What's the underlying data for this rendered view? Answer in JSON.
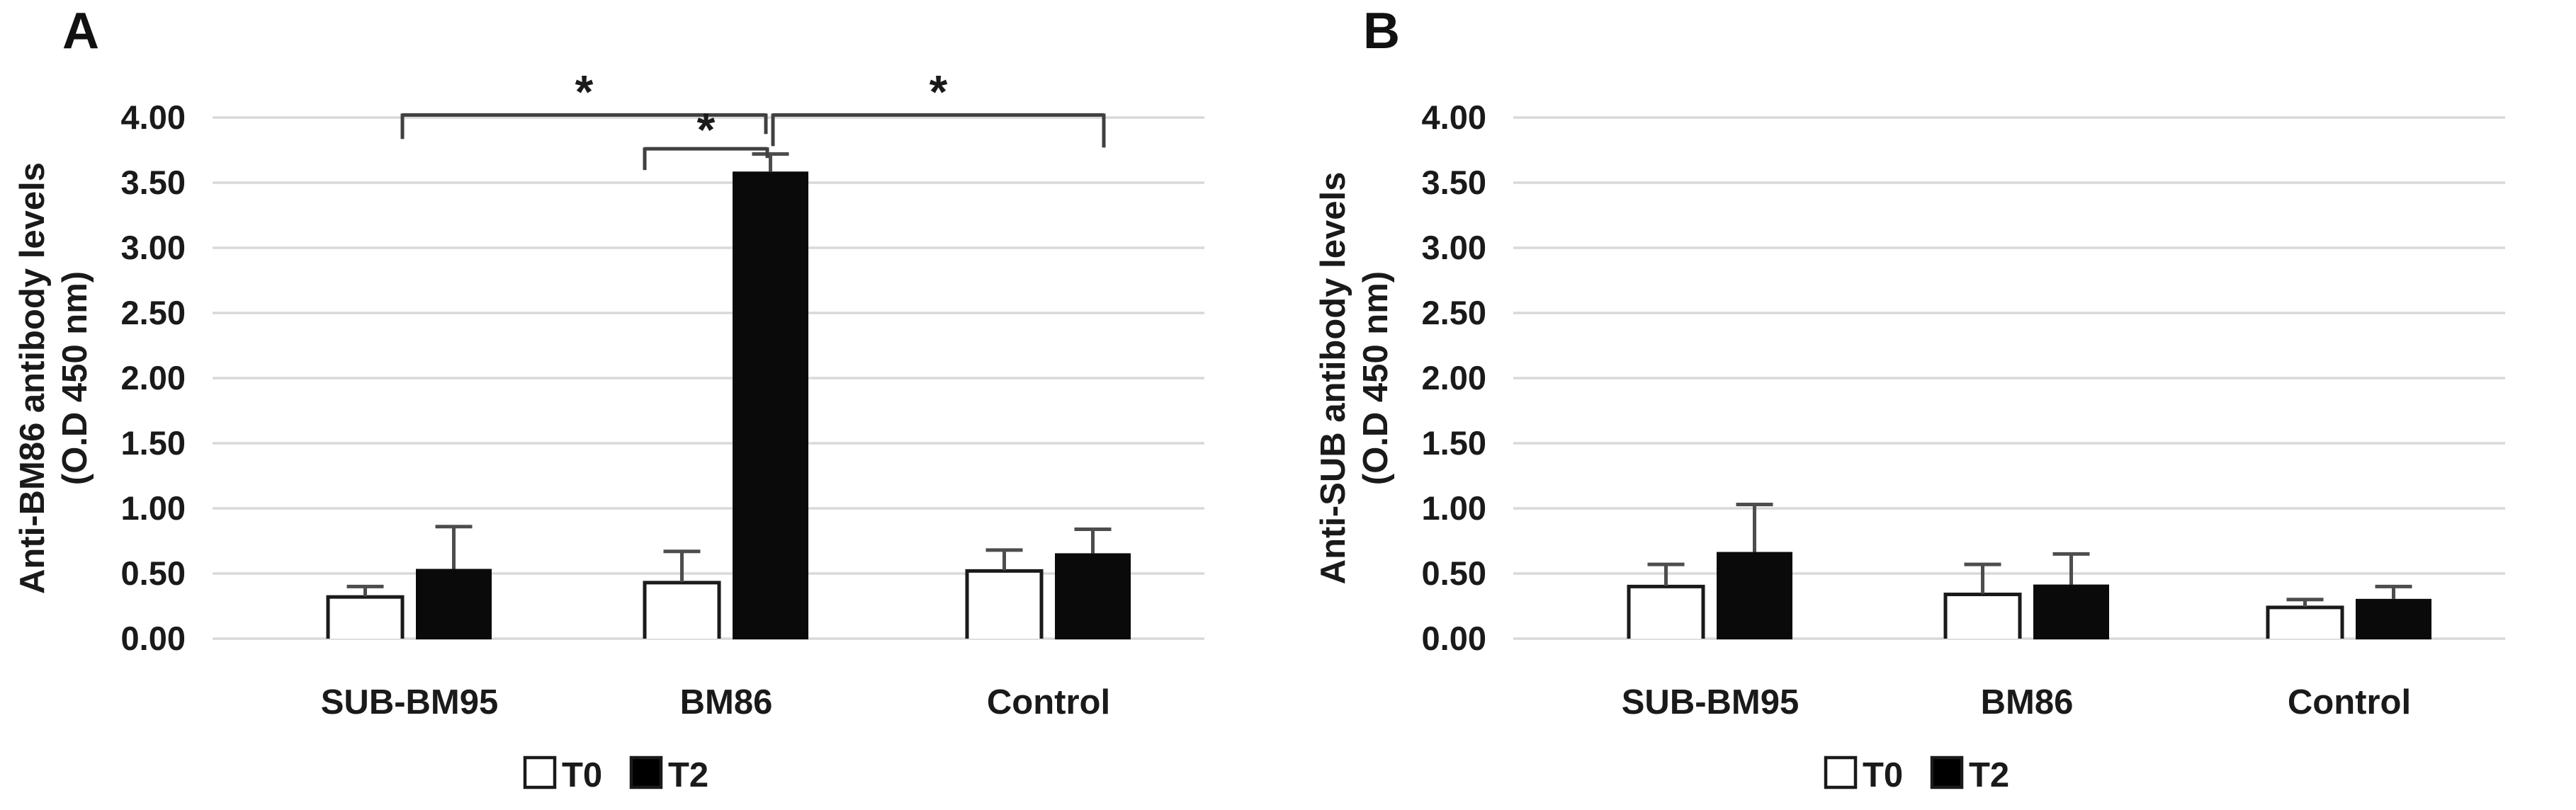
{
  "page": {
    "background": "#ffffff"
  },
  "colors": {
    "grid": "#d9d9d9",
    "text": "#1a1a1a",
    "bar_fill_t0": "#ffffff",
    "bar_fill_t2": "#000000",
    "error_bar": "#4d4d4d",
    "bracket": "#404040"
  },
  "chart_data": [
    {
      "type": "bar",
      "panel_label": "A",
      "title": "",
      "xlabel": "",
      "ylabel": "Anti-BM86 antibody levels (O.D 450 nm)",
      "ylabel_lines": [
        "Anti-BM86 antibody levels",
        "(O.D 450 nm)"
      ],
      "categories": [
        "SUB-BM95",
        "BM86",
        "Control"
      ],
      "series": [
        {
          "name": "T0",
          "fill": "#ffffff",
          "values": [
            0.32,
            0.43,
            0.52
          ],
          "errors_plus": [
            0.08,
            0.24,
            0.16
          ]
        },
        {
          "name": "T2",
          "fill": "#000000",
          "values": [
            0.53,
            3.58,
            0.65
          ],
          "errors_plus": [
            0.33,
            0.14,
            0.19
          ]
        }
      ],
      "ylim": [
        0,
        4
      ],
      "ytick_step": 0.5,
      "ytick_labels": [
        "0.00",
        "0.50",
        "1.00",
        "1.50",
        "2.00",
        "2.50",
        "3.00",
        "3.50",
        "4.00"
      ],
      "grid": true,
      "legend_position": "bottom",
      "significance": [
        {
          "symbol": "*",
          "from": "SUB-BM95",
          "to": "BM86:T2",
          "y": 4.02
        },
        {
          "symbol": "*",
          "from": "BM86:T0",
          "to": "BM86:T2",
          "y": 3.76
        },
        {
          "symbol": "*",
          "from": "BM86:T2",
          "to": "Control:T2",
          "y": 4.02
        }
      ]
    },
    {
      "type": "bar",
      "panel_label": "B",
      "title": "",
      "xlabel": "",
      "ylabel": "Anti-SUB antibody levels (O.D 450 nm)",
      "ylabel_lines": [
        "Anti-SUB antibody levels",
        "(O.D 450 nm)"
      ],
      "categories": [
        "SUB-BM95",
        "BM86",
        "Control"
      ],
      "series": [
        {
          "name": "T0",
          "fill": "#ffffff",
          "values": [
            0.4,
            0.34,
            0.24
          ],
          "errors_plus": [
            0.17,
            0.23,
            0.06
          ]
        },
        {
          "name": "T2",
          "fill": "#000000",
          "values": [
            0.66,
            0.41,
            0.3
          ],
          "errors_plus": [
            0.37,
            0.24,
            0.1
          ]
        }
      ],
      "ylim": [
        0,
        4
      ],
      "ytick_step": 0.5,
      "ytick_labels": [
        "0.00",
        "0.50",
        "1.00",
        "1.50",
        "2.00",
        "2.50",
        "3.00",
        "3.50",
        "4.00"
      ],
      "grid": true,
      "legend_position": "bottom",
      "significance": []
    }
  ],
  "legend": {
    "items": [
      {
        "label": "T0",
        "fill": "#ffffff"
      },
      {
        "label": "T2",
        "fill": "#000000"
      }
    ]
  }
}
